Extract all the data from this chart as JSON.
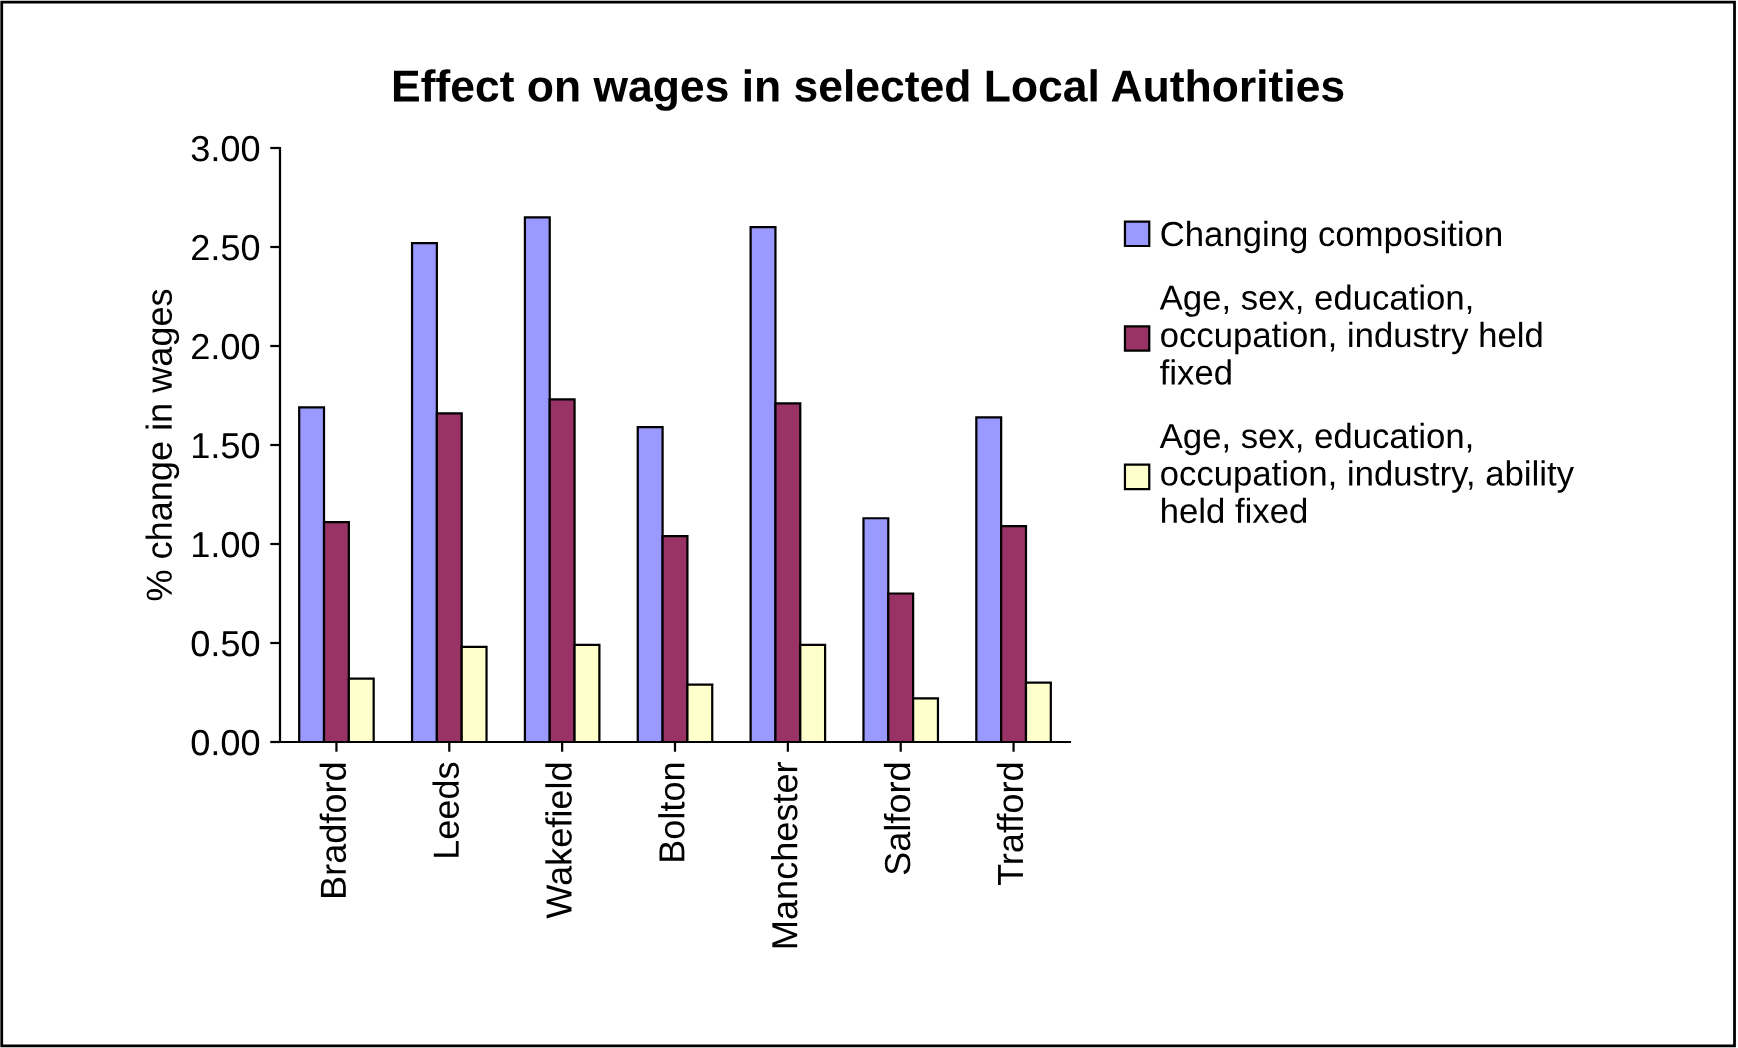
{
  "chart_data": {
    "type": "bar",
    "title": "Effect on wages in selected Local Authorities",
    "ylabel": "% change in wages",
    "categories": [
      "Bradford",
      "Leeds",
      "Wakefield",
      "Bolton",
      "Manchester",
      "Salford",
      "Trafford"
    ],
    "series": [
      {
        "name": "Changing composition",
        "color": "#9999ff",
        "values": [
          1.69,
          2.52,
          2.65,
          1.59,
          2.6,
          1.13,
          1.64
        ]
      },
      {
        "name": "Age, sex, education, occupation, industry held fixed",
        "color": "#993366",
        "values": [
          1.11,
          1.66,
          1.73,
          1.04,
          1.71,
          0.75,
          1.09
        ]
      },
      {
        "name": "Age, sex, education, occupation, industry, ability held fixed",
        "color": "#ffffcc",
        "values": [
          0.32,
          0.48,
          0.49,
          0.29,
          0.49,
          0.22,
          0.3
        ]
      }
    ],
    "ylim": [
      0,
      3
    ],
    "yticks": [
      {
        "value": 0,
        "label": "0.00"
      },
      {
        "value": 0.5,
        "label": "0.50"
      },
      {
        "value": 1,
        "label": "1.00"
      },
      {
        "value": 1.5,
        "label": "1.50"
      },
      {
        "value": 2,
        "label": "2.00"
      },
      {
        "value": 2.5,
        "label": "2.50"
      },
      {
        "value": 3,
        "label": "3.00"
      }
    ],
    "grid": false,
    "legend": "right"
  }
}
